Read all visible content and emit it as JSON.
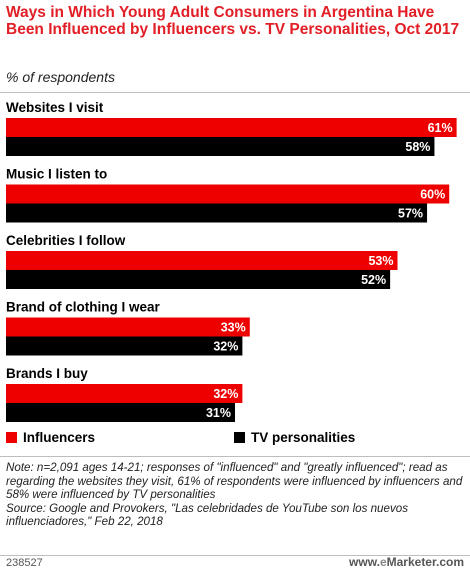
{
  "title": "Ways in Which Young Adult Consumers in Argentina Have Been Influenced by Influencers vs. TV Personalities, Oct 2017",
  "subtitle": "% of respondents",
  "colors": {
    "influencers": "#ee0000",
    "tv": "#000000",
    "title": "#e21e26"
  },
  "chart_data": {
    "type": "bar",
    "orientation": "horizontal",
    "categories": [
      "Websites I visit",
      "Music I listen to",
      "Celebrities I follow",
      "Brand of clothing I wear",
      "Brands I buy"
    ],
    "series": [
      {
        "name": "Influencers",
        "values": [
          61,
          60,
          53,
          33,
          32
        ],
        "labels": [
          "61%",
          "60%",
          "53%",
          "33%",
          "32%"
        ]
      },
      {
        "name": "TV personalities",
        "values": [
          58,
          57,
          52,
          32,
          31
        ],
        "labels": [
          "58%",
          "57%",
          "52%",
          "32%",
          "31%"
        ]
      }
    ],
    "unit": "%",
    "xlim": [
      0,
      62
    ],
    "grid": false,
    "legend_position": "bottom"
  },
  "legend": {
    "influencers": "Influencers",
    "tv": "TV personalities"
  },
  "note": "Note: n=2,091 ages 14-21; responses of \"influenced\" and \"greatly influenced\"; read as regarding the websites they visit, 61% of respondents were influenced by influencers and 58% were influenced by TV personalities",
  "source": "Source: Google and Provokers, \"Las celebridades de YouTube son los nuevos influenciadores,\" Feb 22, 2018",
  "footer": {
    "id": "238527",
    "brand_prefix": "www.",
    "brand_e": "e",
    "brand_rest": "Marketer.com"
  }
}
